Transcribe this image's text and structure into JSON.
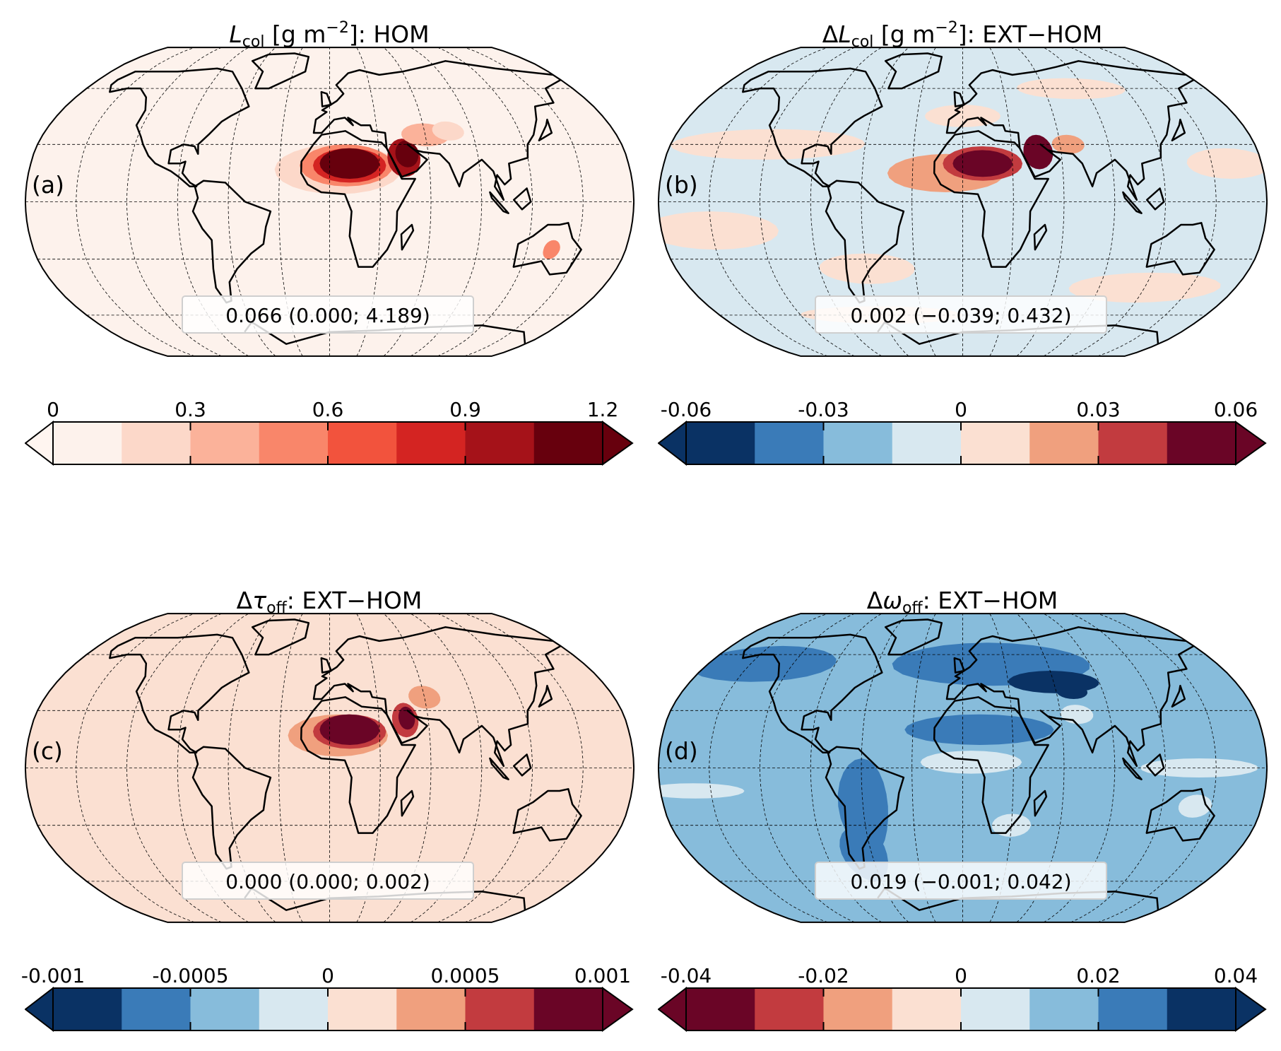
{
  "panels": [
    {
      "id": "a",
      "label": "(a)",
      "title": {
        "delta": "",
        "symbol": "L",
        "sub": "col",
        "unit_pre": " [g m",
        "sup": "−2",
        "rest": "]: HOM"
      },
      "stats": "0.066 (0.000; 4.189)",
      "background": "#fdf2ec",
      "colorbar": {
        "ticks": [
          "0",
          "0.3",
          "0.6",
          "0.9",
          "1.2"
        ],
        "tick_values": [
          0,
          0.3,
          0.6,
          0.9,
          1.2
        ],
        "extend": "both",
        "colors": [
          "#fdf2ec",
          "#fcd8c9",
          "#fbb29a",
          "#f9866a",
          "#f2533d",
          "#d42422",
          "#a51219",
          "#67000d"
        ],
        "under": "#fff5f0",
        "over": "#67000d"
      }
    },
    {
      "id": "b",
      "label": "(b)",
      "title": {
        "delta": "Δ",
        "symbol": "L",
        "sub": "col",
        "unit_pre": " [g m",
        "sup": "−2",
        "rest": "]: EXT−HOM"
      },
      "stats": "0.002 (−0.039; 0.432)",
      "background": "#d8e8f0",
      "colorbar": {
        "ticks": [
          "-0.06",
          "-0.03",
          "0",
          "0.03",
          "0.06"
        ],
        "tick_values": [
          -0.06,
          -0.03,
          0,
          0.03,
          0.06
        ],
        "extend": "both",
        "colors": [
          "#0a3264",
          "#3a7bb8",
          "#87bcdb",
          "#d8e8f0",
          "#fbe0d2",
          "#f0a07e",
          "#c23b3f",
          "#6a0526"
        ],
        "under": "#0a3264",
        "over": "#6a0526"
      }
    },
    {
      "id": "c",
      "label": "(c)",
      "title": {
        "delta": "Δ",
        "symbol": "τ",
        "sub": "off",
        "unit_pre": "",
        "sup": "",
        "rest": ": EXT−HOM"
      },
      "stats": "0.000 (0.000; 0.002)",
      "background": "#fbe0d2",
      "colorbar": {
        "ticks": [
          "-0.001",
          "-0.0005",
          "0",
          "0.0005",
          "0.001"
        ],
        "tick_values": [
          -0.001,
          -0.0005,
          0,
          0.0005,
          0.001
        ],
        "extend": "both",
        "colors": [
          "#0a3264",
          "#3a7bb8",
          "#87bcdb",
          "#d8e8f0",
          "#fbe0d2",
          "#f0a07e",
          "#c23b3f",
          "#6a0526"
        ],
        "under": "#0a3264",
        "over": "#6a0526"
      }
    },
    {
      "id": "d",
      "label": "(d)",
      "title": {
        "delta": "Δ",
        "symbol": "ω",
        "sub": "off",
        "unit_pre": "",
        "sup": "",
        "rest": ": EXT−HOM"
      },
      "stats": "0.019 (−0.001; 0.042)",
      "background": "#87bcdb",
      "colorbar": {
        "ticks": [
          "-0.04",
          "-0.02",
          "0",
          "0.02",
          "0.04"
        ],
        "tick_values": [
          -0.04,
          -0.02,
          0,
          0.02,
          0.04
        ],
        "extend": "both",
        "colors": [
          "#6a0526",
          "#c23b3f",
          "#f0a07e",
          "#fbe0d2",
          "#d8e8f0",
          "#87bcdb",
          "#3a7bb8",
          "#0a3264"
        ],
        "under": "#6a0526",
        "over": "#0a3264"
      }
    }
  ],
  "chart_data": [
    {
      "type": "heatmap",
      "title": "L_col [g m^-2]: HOM",
      "projection": "Robinson",
      "panel": "(a)",
      "global_mean": 0.066,
      "min": 0.0,
      "max": 4.189,
      "colorbar_range": [
        0,
        1.2
      ],
      "levels": 8
    },
    {
      "type": "heatmap",
      "title": "ΔL_col [g m^-2]: EXT−HOM",
      "projection": "Robinson",
      "panel": "(b)",
      "global_mean": 0.002,
      "min": -0.039,
      "max": 0.432,
      "colorbar_range": [
        -0.06,
        0.06
      ],
      "levels": 8
    },
    {
      "type": "heatmap",
      "title": "Δτ_off: EXT−HOM",
      "projection": "Robinson",
      "panel": "(c)",
      "global_mean": 0.0,
      "min": 0.0,
      "max": 0.002,
      "colorbar_range": [
        -0.001,
        0.001
      ],
      "levels": 8
    },
    {
      "type": "heatmap",
      "title": "Δω_off: EXT−HOM",
      "projection": "Robinson",
      "panel": "(d)",
      "global_mean": 0.019,
      "min": -0.001,
      "max": 0.042,
      "colorbar_range": [
        -0.04,
        0.04
      ],
      "levels": 8
    }
  ]
}
